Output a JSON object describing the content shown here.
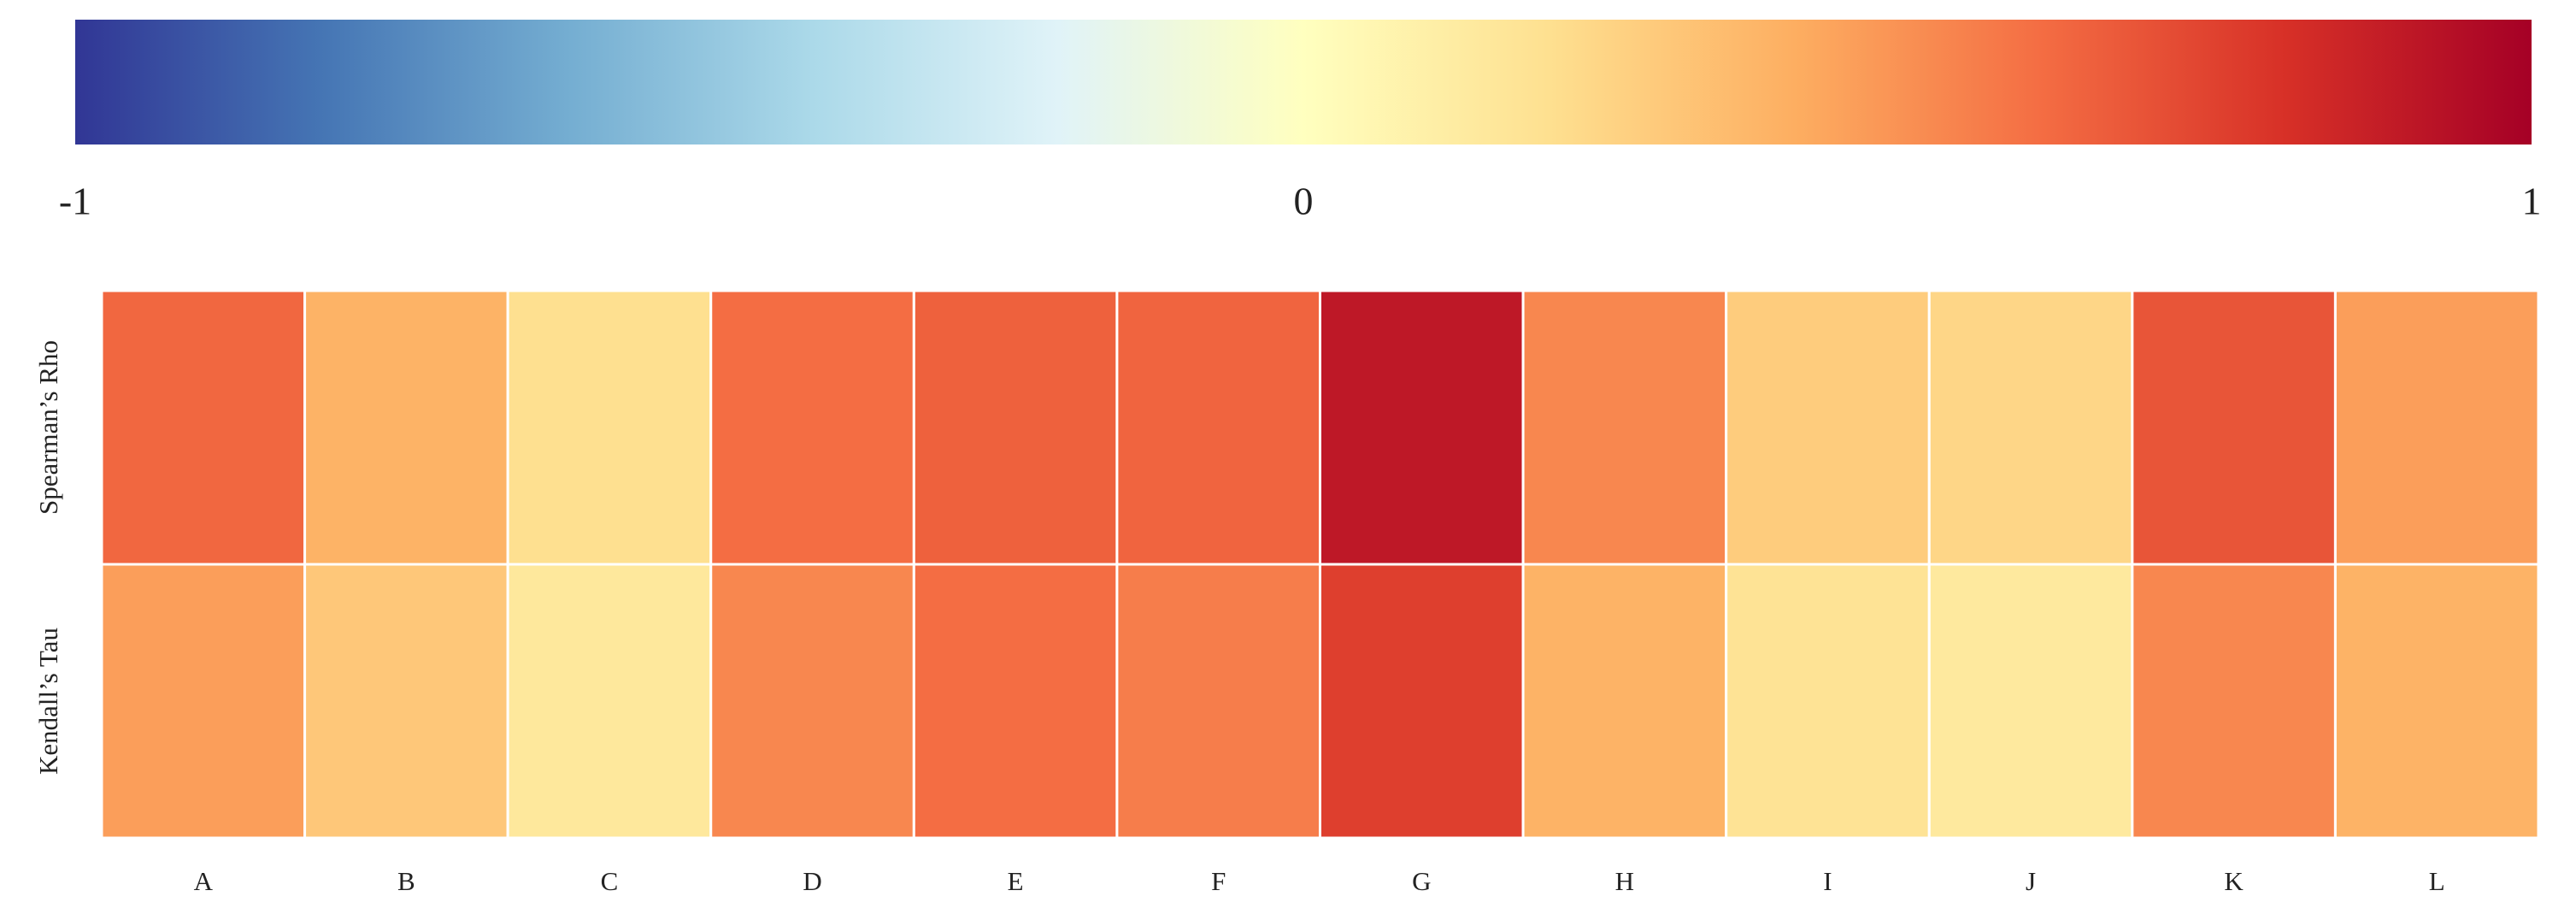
{
  "chart_data": {
    "type": "heatmap",
    "rows": [
      "Spearman’s Rho",
      "Kendall’s Tau"
    ],
    "columns": [
      "A",
      "B",
      "C",
      "D",
      "E",
      "F",
      "G",
      "H",
      "I",
      "J",
      "K",
      "L"
    ],
    "values": [
      [
        0.62,
        0.38,
        0.2,
        0.6,
        0.64,
        0.63,
        0.9,
        0.52,
        0.28,
        0.24,
        0.68,
        0.45
      ],
      [
        0.45,
        0.3,
        0.15,
        0.52,
        0.6,
        0.55,
        0.75,
        0.38,
        0.18,
        0.14,
        0.52,
        0.38
      ]
    ],
    "clim": [
      -1,
      1
    ],
    "cticks": [
      -1,
      0,
      1
    ]
  }
}
